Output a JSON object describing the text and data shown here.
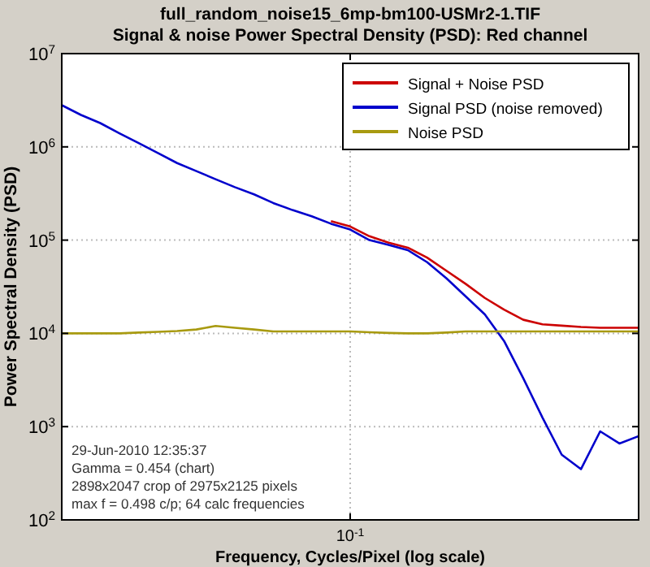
{
  "chart_data": {
    "type": "line",
    "title": "full_random_noise15_6mp-bm100-USMr2-1.TIF",
    "subtitle": "Signal & noise Power Spectral Density (PSD):  Red channel",
    "xlabel": "Frequency, Cycles/Pixel (log scale)",
    "ylabel": "Power Spectral Density (PSD)",
    "log": true,
    "grid": true,
    "legend": "top right",
    "line_style": "solid",
    "marker": "none",
    "categories": [
      null,
      null,
      null,
      null,
      null,
      null,
      null,
      null,
      null,
      null,
      null,
      null,
      null,
      null,
      null,
      "10$^{-1}$",
      null,
      null,
      null,
      null,
      null,
      null,
      null,
      null,
      null,
      null,
      null,
      null,
      null,
      null,
      null
    ],
    "ylim": [
      100,
      10000000
    ],
    "yticks": [
      {
        "value": 100,
        "label": "10$^{2}$"
      },
      {
        "value": 1000,
        "label": "10$^{3}$"
      },
      {
        "value": 10000,
        "label": "10$^{4}$"
      },
      {
        "value": 100000,
        "label": "10$^{5}$"
      },
      {
        "value": 1000000,
        "label": "10$^{6}$"
      },
      {
        "value": 10000000,
        "label": "10$^{7}$"
      }
    ],
    "series": [
      {
        "name": "Signal + Noise PSD",
        "color": "#cc0000",
        "values": [
          null,
          null,
          null,
          null,
          null,
          null,
          null,
          null,
          null,
          null,
          null,
          null,
          null,
          null,
          160000,
          140000,
          110000,
          94000,
          83000,
          65000,
          47000,
          34000,
          24000,
          18000,
          14000,
          12500,
          12100,
          11700,
          11500,
          11500,
          11500
        ]
      },
      {
        "name": "Signal PSD (noise removed)",
        "color": "#0000cc",
        "values": [
          2800000,
          2200000,
          1800000,
          1400000,
          1100000,
          860000,
          670000,
          550000,
          450000,
          370000,
          310000,
          250000,
          210000,
          180000,
          150000,
          130000,
          100000,
          89000,
          78000,
          58000,
          39000,
          25000,
          16000,
          8300,
          3300,
          1250,
          500,
          350,
          890,
          660,
          790
        ]
      },
      {
        "name": "Noise PSD",
        "color": "#a89a10",
        "values": [
          10000,
          10000,
          10000,
          10000,
          10200,
          10400,
          10600,
          11000,
          12000,
          11500,
          11000,
          10500,
          10500,
          10500,
          10500,
          10500,
          10300,
          10100,
          10000,
          10000,
          10200,
          10500,
          10500,
          10500,
          10500,
          10500,
          10500,
          10500,
          10500,
          10500,
          10500
        ]
      }
    ],
    "annotations": [
      "29-Jun-2010 12:35:37",
      "Gamma = 0.454 (chart)",
      "2898x2047 crop of 2975x2125 pixels",
      "max f = 0.498 c/p;  64 calc frequencies"
    ]
  }
}
